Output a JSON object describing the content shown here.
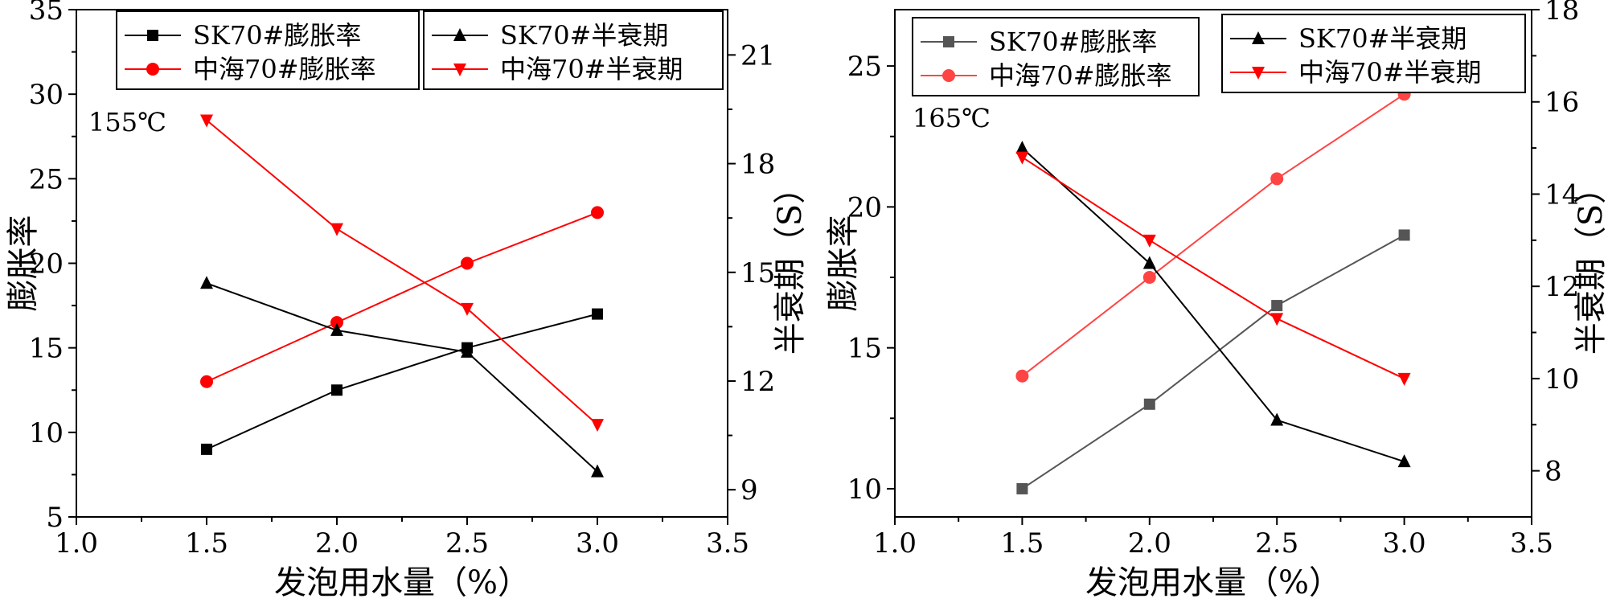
{
  "chart_data": [
    {
      "type": "line",
      "annotation": "155℃",
      "xlabel": "发泡用水量（%）",
      "ylabel_left": "膨胀率",
      "ylabel_right": "半衰期（S）",
      "xlim": [
        1.0,
        3.5
      ],
      "ylim_left": [
        5,
        35
      ],
      "ylim_right": [
        8.25,
        22.25
      ],
      "x_ticks": [
        1.0,
        1.5,
        2.0,
        2.5,
        3.0,
        3.5
      ],
      "x_tick_labels": [
        "1.0",
        "1.5",
        "2.0",
        "2.5",
        "3.0",
        "3.5"
      ],
      "y_left_ticks": [
        5,
        10,
        15,
        20,
        25,
        30,
        35
      ],
      "y_left_tick_labels": [
        "5",
        "10",
        "15",
        "20",
        "25",
        "30",
        "35"
      ],
      "y_right_ticks": [
        9,
        12,
        15,
        18,
        21
      ],
      "y_right_tick_labels": [
        "9",
        "12",
        "15",
        "18",
        "21"
      ],
      "legend": {
        "position": "top",
        "columns": [
          "left-axis",
          "right-axis"
        ]
      },
      "series": [
        {
          "name": "SK70#膨胀率",
          "axis": "left",
          "color": "#000000",
          "marker": "square",
          "x": [
            1.5,
            2.0,
            2.5,
            3.0
          ],
          "values": [
            9.0,
            12.5,
            15.0,
            17.0
          ]
        },
        {
          "name": "中海70#膨胀率",
          "axis": "left",
          "color": "#ff0000",
          "marker": "circle",
          "x": [
            1.5,
            2.0,
            2.5,
            3.0
          ],
          "values": [
            13.0,
            16.5,
            20.0,
            23.0
          ]
        },
        {
          "name": "SK70#半衰期",
          "axis": "right",
          "color": "#000000",
          "marker": "triangle-up",
          "x": [
            1.5,
            2.0,
            2.5,
            3.0
          ],
          "values": [
            14.7,
            13.4,
            12.8,
            9.5
          ]
        },
        {
          "name": "中海70#半衰期",
          "axis": "right",
          "color": "#ff0000",
          "marker": "triangle-down",
          "x": [
            1.5,
            2.0,
            2.5,
            3.0
          ],
          "values": [
            19.2,
            16.2,
            14.0,
            10.8
          ]
        }
      ]
    },
    {
      "type": "line",
      "annotation": "165℃",
      "xlabel": "发泡用水量（%）",
      "ylabel_left": "膨胀率",
      "ylabel_right": "半衰期（S）",
      "xlim": [
        1.0,
        3.5
      ],
      "ylim_left": [
        9,
        27
      ],
      "ylim_right": [
        7,
        18
      ],
      "x_ticks": [
        1.0,
        1.5,
        2.0,
        2.5,
        3.0,
        3.5
      ],
      "x_tick_labels": [
        "1.0",
        "1.5",
        "2.0",
        "2.5",
        "3.0",
        "3.5"
      ],
      "y_left_ticks": [
        10,
        15,
        20,
        25
      ],
      "y_left_tick_labels": [
        "10",
        "15",
        "20",
        "25"
      ],
      "y_right_ticks": [
        8,
        10,
        12,
        14,
        16,
        18
      ],
      "y_right_tick_labels": [
        "8",
        "10",
        "12",
        "14",
        "16",
        "18"
      ],
      "legend": {
        "position": "top",
        "columns": [
          "left-axis",
          "right-axis"
        ]
      },
      "series": [
        {
          "name": "SK70#膨胀率",
          "axis": "left",
          "color": "#555555",
          "marker": "square",
          "x": [
            1.5,
            2.0,
            2.5,
            3.0
          ],
          "values": [
            10.0,
            13.0,
            16.5,
            19.0
          ]
        },
        {
          "name": "中海70#膨胀率",
          "axis": "left",
          "color": "#ff4444",
          "marker": "circle",
          "x": [
            1.5,
            2.0,
            2.5,
            3.0
          ],
          "values": [
            14.0,
            17.5,
            21.0,
            24.0
          ]
        },
        {
          "name": "SK70#半衰期",
          "axis": "right",
          "color": "#000000",
          "marker": "triangle-up",
          "x": [
            1.5,
            2.0,
            2.5,
            3.0
          ],
          "values": [
            15.0,
            12.5,
            9.1,
            8.2
          ]
        },
        {
          "name": "中海70#半衰期",
          "axis": "right",
          "color": "#ff0000",
          "marker": "triangle-down",
          "x": [
            1.5,
            2.0,
            2.5,
            3.0
          ],
          "values": [
            14.8,
            13.0,
            11.3,
            10.0
          ]
        }
      ]
    }
  ]
}
